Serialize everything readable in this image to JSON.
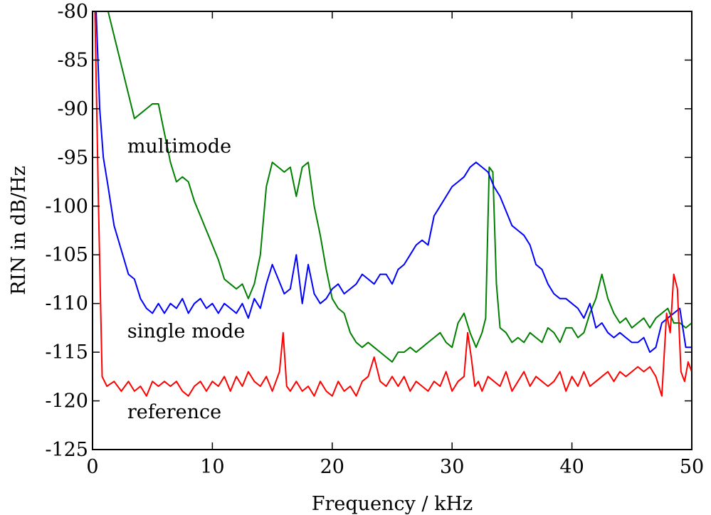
{
  "chart_data": {
    "type": "line",
    "title": "",
    "xlabel": "Frequency / kHz",
    "ylabel": "RIN in dB/Hz",
    "xlim": [
      0,
      50
    ],
    "ylim": [
      -125,
      -80
    ],
    "xticks": [
      0,
      10,
      20,
      30,
      40,
      50
    ],
    "yticks": [
      -80,
      -85,
      -90,
      -95,
      -100,
      -105,
      -110,
      -115,
      -120,
      -125
    ],
    "grid": false,
    "legend": "none",
    "annotations": [
      {
        "text": "multimode",
        "x": 2.9,
        "y": -94.5
      },
      {
        "text": "single mode",
        "x": 2.9,
        "y": -113.5
      },
      {
        "text": "reference",
        "x": 2.9,
        "y": -121.8
      }
    ],
    "series": [
      {
        "color": "#008000",
        "x": [
          1.3,
          1.8,
          2.4,
          3.0,
          3.5,
          4.0,
          4.5,
          5.0,
          5.5,
          6.0,
          6.5,
          7.0,
          7.5,
          8.0,
          8.5,
          9.0,
          9.5,
          10.0,
          10.5,
          11.0,
          11.5,
          12.0,
          12.5,
          13.0,
          13.5,
          14.0,
          14.5,
          15.0,
          15.5,
          16.0,
          16.5,
          17.0,
          17.5,
          18.0,
          18.5,
          19.0,
          19.5,
          20.0,
          20.5,
          21.0,
          21.5,
          22.0,
          22.5,
          23.0,
          23.5,
          24.0,
          24.5,
          25.0,
          25.5,
          26.0,
          26.5,
          27.0,
          27.5,
          28.0,
          28.5,
          29.0,
          29.5,
          30.0,
          30.5,
          31.0,
          31.5,
          32.0,
          32.5,
          32.8,
          33.1,
          33.4,
          33.7,
          34.0,
          34.5,
          35.0,
          35.5,
          36.0,
          36.5,
          37.0,
          37.5,
          38.0,
          38.5,
          39.0,
          39.5,
          40.0,
          40.5,
          41.0,
          41.5,
          42.0,
          42.5,
          43.0,
          43.5,
          44.0,
          44.5,
          45.0,
          45.5,
          46.0,
          46.5,
          47.0,
          47.5,
          48.0,
          48.5,
          49.0,
          49.5,
          50.0
        ],
        "y": [
          -80.0,
          -82.5,
          -85.5,
          -88.5,
          -91.0,
          -90.5,
          -90.0,
          -89.5,
          -89.5,
          -92.5,
          -95.5,
          -97.5,
          -97.0,
          -97.5,
          -99.5,
          -101.0,
          -102.5,
          -104.0,
          -105.5,
          -107.5,
          -108.0,
          -108.5,
          -108.0,
          -109.5,
          -108.0,
          -105.0,
          -98.0,
          -95.5,
          -96.0,
          -96.5,
          -96.0,
          -99.0,
          -96.0,
          -95.5,
          -100.0,
          -103.0,
          -106.5,
          -109.5,
          -110.5,
          -111.0,
          -113.0,
          -114.0,
          -114.5,
          -114.0,
          -114.5,
          -115.0,
          -115.5,
          -116.0,
          -115.0,
          -115.0,
          -114.5,
          -115.0,
          -114.5,
          -114.0,
          -113.5,
          -113.0,
          -114.0,
          -114.5,
          -112.0,
          -111.0,
          -113.0,
          -114.5,
          -113.0,
          -111.5,
          -96.0,
          -96.5,
          -108.0,
          -112.5,
          -113.0,
          -114.0,
          -113.5,
          -114.0,
          -113.0,
          -113.5,
          -114.0,
          -112.5,
          -113.0,
          -114.0,
          -112.5,
          -112.5,
          -113.5,
          -113.0,
          -111.0,
          -109.5,
          -107.0,
          -109.5,
          -111.0,
          -112.0,
          -111.5,
          -112.5,
          -112.0,
          -111.5,
          -112.5,
          -111.5,
          -111.0,
          -110.5,
          -112.0,
          -112.0,
          -112.5,
          -112.0
        ]
      },
      {
        "color": "#0000ff",
        "x": [
          0.3,
          0.6,
          0.9,
          1.3,
          1.8,
          2.4,
          3.0,
          3.5,
          4.0,
          4.5,
          5.0,
          5.5,
          6.0,
          6.5,
          7.0,
          7.5,
          8.0,
          8.5,
          9.0,
          9.5,
          10.0,
          10.5,
          11.0,
          11.5,
          12.0,
          12.5,
          13.0,
          13.5,
          14.0,
          14.5,
          15.0,
          15.5,
          16.0,
          16.5,
          17.0,
          17.5,
          18.0,
          18.5,
          19.0,
          19.5,
          20.0,
          20.5,
          21.0,
          21.5,
          22.0,
          22.5,
          23.0,
          23.5,
          24.0,
          24.5,
          25.0,
          25.5,
          26.0,
          26.5,
          27.0,
          27.5,
          28.0,
          28.5,
          29.0,
          29.5,
          30.0,
          30.5,
          31.0,
          31.5,
          32.0,
          32.5,
          33.0,
          33.5,
          34.0,
          34.5,
          35.0,
          35.5,
          36.0,
          36.5,
          37.0,
          37.5,
          38.0,
          38.5,
          39.0,
          39.5,
          40.0,
          40.5,
          41.0,
          41.5,
          42.0,
          42.5,
          43.0,
          43.5,
          44.0,
          44.5,
          45.0,
          45.5,
          46.0,
          46.5,
          47.0,
          47.5,
          48.0,
          48.5,
          49.0,
          49.5,
          50.0
        ],
        "y": [
          -80.0,
          -90.0,
          -95.0,
          -98.0,
          -102.0,
          -104.5,
          -107.0,
          -107.5,
          -109.5,
          -110.5,
          -111.0,
          -110.0,
          -111.0,
          -110.0,
          -110.5,
          -109.5,
          -111.0,
          -110.0,
          -109.5,
          -110.5,
          -110.0,
          -111.0,
          -110.0,
          -110.5,
          -111.0,
          -110.0,
          -111.5,
          -109.5,
          -110.5,
          -108.0,
          -106.0,
          -107.5,
          -109.0,
          -108.5,
          -105.0,
          -110.0,
          -106.0,
          -109.0,
          -110.0,
          -109.5,
          -108.5,
          -108.0,
          -109.0,
          -108.5,
          -108.0,
          -107.0,
          -107.5,
          -108.0,
          -107.0,
          -107.0,
          -108.0,
          -106.5,
          -106.0,
          -105.0,
          -104.0,
          -103.5,
          -104.0,
          -101.0,
          -100.0,
          -99.0,
          -98.0,
          -97.5,
          -97.0,
          -96.0,
          -95.5,
          -96.0,
          -96.5,
          -98.0,
          -99.0,
          -100.5,
          -102.0,
          -102.5,
          -103.0,
          -104.0,
          -106.0,
          -106.5,
          -108.0,
          -109.0,
          -109.5,
          -109.5,
          -110.0,
          -110.5,
          -111.5,
          -110.0,
          -112.5,
          -112.0,
          -113.0,
          -113.5,
          -113.0,
          -113.5,
          -114.0,
          -114.0,
          -113.5,
          -115.0,
          -114.5,
          -112.0,
          -111.5,
          -111.0,
          -110.5,
          -114.5,
          -114.5
        ]
      },
      {
        "color": "#ff0000",
        "x": [
          0.2,
          0.5,
          0.8,
          1.2,
          1.8,
          2.4,
          3.0,
          3.5,
          4.0,
          4.5,
          5.0,
          5.5,
          6.0,
          6.5,
          7.0,
          7.5,
          8.0,
          8.5,
          9.0,
          9.5,
          10.0,
          10.5,
          11.0,
          11.5,
          12.0,
          12.5,
          13.0,
          13.5,
          14.0,
          14.5,
          15.0,
          15.3,
          15.6,
          15.9,
          16.2,
          16.5,
          17.0,
          17.5,
          18.0,
          18.5,
          19.0,
          19.5,
          20.0,
          20.5,
          21.0,
          21.5,
          22.0,
          22.5,
          23.0,
          23.5,
          24.0,
          24.5,
          25.0,
          25.5,
          26.0,
          26.5,
          27.0,
          27.5,
          28.0,
          28.5,
          29.0,
          29.5,
          30.0,
          30.5,
          31.0,
          31.3,
          31.6,
          31.9,
          32.2,
          32.5,
          33.0,
          33.5,
          34.0,
          34.5,
          35.0,
          35.5,
          36.0,
          36.5,
          37.0,
          37.5,
          38.0,
          38.5,
          39.0,
          39.5,
          40.0,
          40.5,
          41.0,
          41.5,
          42.0,
          42.5,
          43.0,
          43.5,
          44.0,
          44.5,
          45.0,
          45.5,
          46.0,
          46.5,
          47.0,
          47.5,
          47.9,
          48.2,
          48.5,
          48.8,
          49.1,
          49.4,
          49.7,
          50.0
        ],
        "y": [
          -80.0,
          -100.0,
          -117.5,
          -118.5,
          -118.0,
          -119.0,
          -118.0,
          -119.0,
          -118.5,
          -119.5,
          -118.0,
          -118.5,
          -118.0,
          -118.5,
          -118.0,
          -119.0,
          -119.5,
          -118.5,
          -118.0,
          -119.0,
          -118.0,
          -118.5,
          -117.5,
          -119.0,
          -117.5,
          -118.5,
          -117.0,
          -118.0,
          -118.5,
          -117.5,
          -119.0,
          -118.0,
          -117.0,
          -113.0,
          -118.5,
          -119.0,
          -118.0,
          -119.0,
          -118.5,
          -119.5,
          -118.0,
          -119.0,
          -119.5,
          -118.0,
          -119.0,
          -118.5,
          -119.5,
          -118.0,
          -117.5,
          -115.5,
          -118.0,
          -118.5,
          -117.5,
          -118.5,
          -117.5,
          -119.0,
          -118.0,
          -118.5,
          -119.0,
          -118.0,
          -118.5,
          -117.0,
          -119.0,
          -118.0,
          -117.5,
          -113.0,
          -115.5,
          -118.5,
          -118.0,
          -119.0,
          -117.5,
          -118.0,
          -118.5,
          -117.0,
          -119.0,
          -118.0,
          -117.0,
          -118.5,
          -117.5,
          -118.0,
          -118.5,
          -118.0,
          -117.0,
          -119.0,
          -117.5,
          -118.5,
          -117.0,
          -118.5,
          -118.0,
          -117.5,
          -117.0,
          -118.0,
          -117.0,
          -117.5,
          -117.0,
          -116.5,
          -117.0,
          -116.5,
          -117.5,
          -119.5,
          -111.0,
          -113.0,
          -107.0,
          -108.5,
          -117.0,
          -118.0,
          -116.0,
          -117.0
        ]
      }
    ]
  }
}
